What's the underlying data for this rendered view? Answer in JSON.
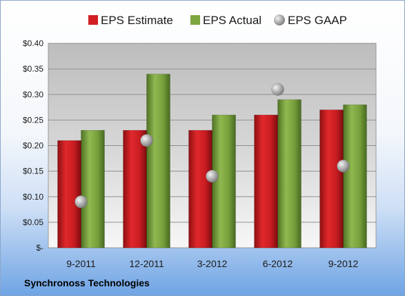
{
  "chart_data": {
    "type": "bar",
    "title": "",
    "xlabel": "",
    "ylabel": "",
    "categories": [
      "9-2011",
      "12-2011",
      "3-2012",
      "6-2012",
      "9-2012"
    ],
    "series": [
      {
        "name": "EPS Estimate",
        "kind": "bar",
        "color": "#d11f24",
        "values": [
          0.21,
          0.23,
          0.23,
          0.26,
          0.27
        ]
      },
      {
        "name": "EPS Actual",
        "kind": "bar",
        "color": "#7ea640",
        "values": [
          0.23,
          0.34,
          0.26,
          0.29,
          0.28
        ]
      },
      {
        "name": "EPS GAAP",
        "kind": "marker",
        "color": "#b5b5b5",
        "values": [
          0.09,
          0.21,
          0.14,
          0.31,
          0.16
        ]
      }
    ],
    "ylim": [
      0,
      0.4
    ],
    "yticks": [
      0,
      0.05,
      0.1,
      0.15,
      0.2,
      0.25,
      0.3,
      0.35,
      0.4
    ],
    "ytick_labels": [
      "$-",
      "$0.05",
      "$0.10",
      "$0.15",
      "$0.20",
      "$0.25",
      "$0.30",
      "$0.35",
      "$0.40"
    ],
    "grid": true,
    "legend_position": "top"
  },
  "footer": {
    "company": "Synchronoss Technologies"
  }
}
